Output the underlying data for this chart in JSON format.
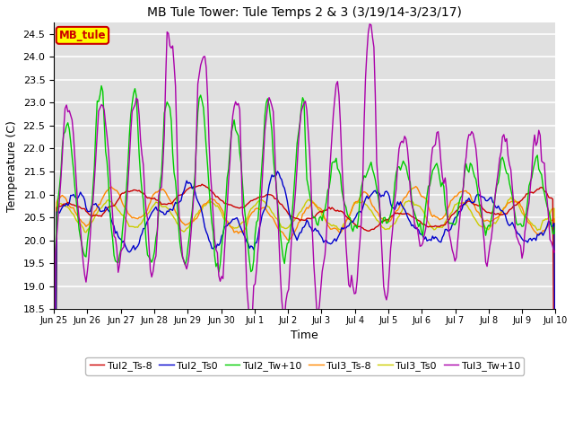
{
  "title": "MB Tule Tower: Tule Temps 2 & 3 (3/19/14-3/23/17)",
  "xlabel": "Time",
  "ylabel": "Temperature (C)",
  "ylim": [
    18.5,
    24.75
  ],
  "yticks": [
    18.5,
    19.0,
    19.5,
    20.0,
    20.5,
    21.0,
    21.5,
    22.0,
    22.5,
    23.0,
    23.5,
    24.0,
    24.5
  ],
  "xtick_labels": [
    "Jun 25",
    "Jun 26",
    "Jun 27",
    "Jun 28",
    "Jun 29",
    "Jun 30",
    "Jul 1",
    "Jul 2",
    "Jul 3",
    "Jul 4",
    "Jul 5",
    "Jul 6",
    "Jul 7",
    "Jul 8",
    "Jul 9",
    "Jul 10"
  ],
  "series_colors": {
    "Tul2_Ts-8": "#cc0000",
    "Tul2_Ts0": "#0000cc",
    "Tul2_Tw+10": "#00cc00",
    "Tul3_Ts-8": "#ff8800",
    "Tul3_Ts0": "#cccc00",
    "Tul3_Tw+10": "#aa00aa"
  },
  "legend_label": "MB_tule",
  "legend_box_facecolor": "#ffff00",
  "legend_box_edgecolor": "#cc0000",
  "bg_color": "#e0e0e0",
  "grid_color": "#ffffff",
  "fig_width": 6.4,
  "fig_height": 4.8,
  "dpi": 100
}
